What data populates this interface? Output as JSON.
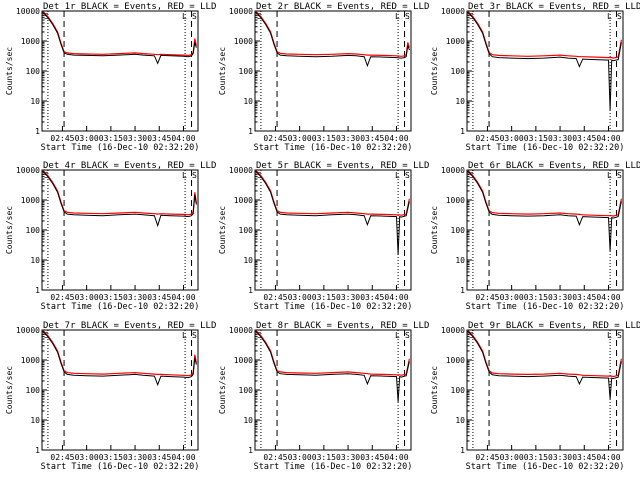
{
  "figure": {
    "ylabel": "Counts/sec",
    "xlabel": "Start Time (16-Dec-10 02:32:20)",
    "title_suffix": " BLACK = Events, RED = LLD",
    "corner_labels": {
      "left": "S",
      "right": "L",
      "far_right": "S"
    }
  },
  "chart_data": [
    {
      "type": "line",
      "title": "Det 1r BLACK = Events, RED = LLD",
      "xlabel": "Start Time (16-Dec-10 02:32:20)",
      "ylabel": "Counts/sec",
      "yscale": "log",
      "ylim": [
        1,
        10000
      ],
      "xlim": [
        "02:32:20",
        "04:09:00"
      ],
      "yticks": [
        1,
        10,
        100,
        1000,
        10000
      ],
      "ytick_labels": [
        "1",
        "10",
        "100",
        "1000",
        "10000"
      ],
      "xticks": [
        "02:45",
        "03:00",
        "03:15",
        "03:30",
        "03:45",
        "04:00"
      ],
      "x": [
        "02:33",
        "02:36",
        "02:39",
        "02:42",
        "02:44",
        "02:46",
        "02:48",
        "02:52",
        "03:00",
        "03:10",
        "03:20",
        "03:30",
        "03:35",
        "03:42",
        "03:44",
        "03:46",
        "03:52",
        "04:00",
        "04:03",
        "04:05",
        "04:06",
        "04:07",
        "04:08"
      ],
      "series": [
        {
          "name": "BLACK = Events",
          "color": "#000000",
          "values": [
            9000,
            6000,
            3500,
            1800,
            800,
            400,
            360,
            340,
            330,
            320,
            340,
            360,
            340,
            320,
            180,
            330,
            320,
            310,
            300,
            320,
            380,
            900,
            600
          ]
        },
        {
          "name": "RED = LLD",
          "color": "#ff0000",
          "values": [
            9500,
            6500,
            3800,
            2000,
            900,
            440,
            400,
            380,
            370,
            360,
            380,
            400,
            380,
            360,
            350,
            360,
            350,
            340,
            330,
            350,
            420,
            1200,
            700
          ]
        }
      ]
    },
    {
      "type": "line",
      "title": "Det 2r BLACK = Events, RED = LLD",
      "xlabel": "Start Time (16-Dec-10 02:32:20)",
      "ylabel": "Counts/sec",
      "yscale": "log",
      "ylim": [
        1,
        10000
      ],
      "xlim": [
        "02:32:20",
        "04:09:00"
      ],
      "yticks": [
        1,
        10,
        100,
        1000,
        10000
      ],
      "ytick_labels": [
        "1",
        "10",
        "100",
        "1000",
        "10000"
      ],
      "xticks": [
        "02:45",
        "03:00",
        "03:15",
        "03:30",
        "03:45",
        "04:00"
      ],
      "x": [
        "02:33",
        "02:36",
        "02:39",
        "02:42",
        "02:44",
        "02:46",
        "02:48",
        "02:52",
        "03:00",
        "03:10",
        "03:20",
        "03:30",
        "03:35",
        "03:40",
        "03:42",
        "03:44",
        "03:52",
        "04:00",
        "04:03",
        "04:05",
        "04:06",
        "04:07",
        "04:08"
      ],
      "series": [
        {
          "name": "BLACK = Events",
          "color": "#000000",
          "values": [
            9000,
            6000,
            3500,
            1800,
            800,
            400,
            340,
            320,
            310,
            300,
            310,
            330,
            320,
            300,
            150,
            300,
            290,
            280,
            270,
            280,
            300,
            700,
            500
          ]
        },
        {
          "name": "RED = LLD",
          "color": "#ff0000",
          "values": [
            9500,
            6500,
            3800,
            2000,
            900,
            440,
            390,
            370,
            360,
            350,
            360,
            380,
            370,
            350,
            340,
            340,
            330,
            320,
            310,
            320,
            350,
            900,
            600
          ]
        }
      ]
    },
    {
      "type": "line",
      "title": "Det 3r BLACK = Events, RED = LLD",
      "xlabel": "Start Time (16-Dec-10 02:32:20)",
      "ylabel": "Counts/sec",
      "yscale": "log",
      "ylim": [
        1,
        10000
      ],
      "xlim": [
        "02:32:20",
        "04:09:00"
      ],
      "yticks": [
        1,
        10,
        100,
        1000,
        10000
      ],
      "ytick_labels": [
        "1",
        "10",
        "100",
        "1000",
        "10000"
      ],
      "xticks": [
        "02:45",
        "03:00",
        "03:15",
        "03:30",
        "03:45",
        "04:00"
      ],
      "x": [
        "02:33",
        "02:36",
        "02:39",
        "02:42",
        "02:44",
        "02:46",
        "02:48",
        "02:52",
        "03:00",
        "03:10",
        "03:20",
        "03:30",
        "03:35",
        "03:40",
        "03:42",
        "03:44",
        "03:52",
        "04:00",
        "04:01",
        "04:02",
        "04:03",
        "04:06",
        "04:08"
      ],
      "series": [
        {
          "name": "BLACK = Events",
          "color": "#000000",
          "values": [
            9000,
            6000,
            3500,
            1800,
            800,
            380,
            300,
            280,
            270,
            260,
            270,
            290,
            270,
            260,
            140,
            250,
            240,
            230,
            5,
            230,
            220,
            240,
            900
          ]
        },
        {
          "name": "RED = LLD",
          "color": "#ff0000",
          "values": [
            9500,
            6500,
            3800,
            2000,
            900,
            420,
            350,
            330,
            320,
            310,
            320,
            340,
            320,
            310,
            300,
            300,
            290,
            280,
            280,
            280,
            270,
            290,
            1100
          ]
        }
      ]
    },
    {
      "type": "line",
      "title": "Det 4r BLACK = Events, RED = LLD",
      "xlabel": "Start Time (16-Dec-10 02:32:20)",
      "ylabel": "Counts/sec",
      "yscale": "log",
      "ylim": [
        1,
        10000
      ],
      "xlim": [
        "02:32:20",
        "04:09:00"
      ],
      "yticks": [
        1,
        10,
        100,
        1000,
        10000
      ],
      "ytick_labels": [
        "1",
        "10",
        "100",
        "1000",
        "10000"
      ],
      "xticks": [
        "02:45",
        "03:00",
        "03:15",
        "03:30",
        "03:45",
        "04:00"
      ],
      "x": [
        "02:33",
        "02:36",
        "02:39",
        "02:42",
        "02:44",
        "02:46",
        "02:48",
        "02:52",
        "03:00",
        "03:10",
        "03:20",
        "03:30",
        "03:35",
        "03:42",
        "03:44",
        "03:46",
        "03:52",
        "04:00",
        "04:03",
        "04:05",
        "04:06",
        "04:07",
        "04:08"
      ],
      "series": [
        {
          "name": "BLACK = Events",
          "color": "#000000",
          "values": [
            9000,
            6000,
            3500,
            1800,
            800,
            400,
            340,
            320,
            310,
            300,
            320,
            340,
            320,
            300,
            140,
            310,
            300,
            290,
            280,
            300,
            350,
            1500,
            700
          ]
        },
        {
          "name": "RED = LLD",
          "color": "#ff0000",
          "values": [
            9500,
            6500,
            3800,
            2000,
            900,
            440,
            390,
            370,
            360,
            350,
            370,
            390,
            370,
            350,
            340,
            350,
            340,
            330,
            320,
            340,
            400,
            1800,
            800
          ]
        }
      ]
    },
    {
      "type": "line",
      "title": "Det 5r BLACK = Events, RED = LLD",
      "xlabel": "Start Time (16-Dec-10 02:32:20)",
      "ylabel": "Counts/sec",
      "yscale": "log",
      "ylim": [
        1,
        10000
      ],
      "xlim": [
        "02:32:20",
        "04:09:00"
      ],
      "yticks": [
        1,
        10,
        100,
        1000,
        10000
      ],
      "ytick_labels": [
        "1",
        "10",
        "100",
        "1000",
        "10000"
      ],
      "xticks": [
        "02:45",
        "03:00",
        "03:15",
        "03:30",
        "03:45",
        "04:00"
      ],
      "x": [
        "02:33",
        "02:36",
        "02:39",
        "02:42",
        "02:44",
        "02:46",
        "02:48",
        "02:52",
        "03:00",
        "03:10",
        "03:20",
        "03:30",
        "03:35",
        "03:40",
        "03:42",
        "03:44",
        "03:52",
        "04:00",
        "04:01",
        "04:02",
        "04:03",
        "04:06",
        "04:08"
      ],
      "series": [
        {
          "name": "BLACK = Events",
          "color": "#000000",
          "values": [
            9000,
            6000,
            3500,
            1800,
            800,
            400,
            340,
            320,
            310,
            300,
            320,
            340,
            320,
            300,
            150,
            300,
            290,
            280,
            15,
            280,
            270,
            300,
            900
          ]
        },
        {
          "name": "RED = LLD",
          "color": "#ff0000",
          "values": [
            9500,
            6500,
            3800,
            2000,
            900,
            440,
            390,
            370,
            360,
            350,
            370,
            390,
            370,
            350,
            340,
            340,
            330,
            320,
            320,
            320,
            310,
            340,
            1100
          ]
        }
      ]
    },
    {
      "type": "line",
      "title": "Det 6r BLACK = Events, RED = LLD",
      "xlabel": "Start Time (16-Dec-10 02:32:20)",
      "ylabel": "Counts/sec",
      "yscale": "log",
      "ylim": [
        1,
        10000
      ],
      "xlim": [
        "02:32:20",
        "04:09:00"
      ],
      "yticks": [
        1,
        10,
        100,
        1000,
        10000
      ],
      "ytick_labels": [
        "1",
        "10",
        "100",
        "1000",
        "10000"
      ],
      "xticks": [
        "02:45",
        "03:00",
        "03:15",
        "03:30",
        "03:45",
        "04:00"
      ],
      "x": [
        "02:33",
        "02:36",
        "02:39",
        "02:42",
        "02:44",
        "02:46",
        "02:48",
        "02:52",
        "03:00",
        "03:10",
        "03:20",
        "03:30",
        "03:35",
        "03:40",
        "03:42",
        "03:44",
        "03:52",
        "04:00",
        "04:01",
        "04:02",
        "04:03",
        "04:06",
        "04:08"
      ],
      "series": [
        {
          "name": "BLACK = Events",
          "color": "#000000",
          "values": [
            9000,
            6000,
            3500,
            1800,
            800,
            400,
            330,
            310,
            300,
            290,
            300,
            320,
            300,
            290,
            150,
            280,
            270,
            260,
            20,
            260,
            250,
            280,
            900
          ]
        },
        {
          "name": "RED = LLD",
          "color": "#ff0000",
          "values": [
            9500,
            6500,
            3800,
            2000,
            900,
            440,
            380,
            360,
            350,
            340,
            350,
            370,
            350,
            340,
            330,
            320,
            310,
            300,
            300,
            300,
            290,
            320,
            1100
          ]
        }
      ]
    },
    {
      "type": "line",
      "title": "Det 7r BLACK = Events, RED = LLD",
      "xlabel": "Start Time (16-Dec-10 02:32:20)",
      "ylabel": "Counts/sec",
      "yscale": "log",
      "ylim": [
        1,
        10000
      ],
      "xlim": [
        "02:32:20",
        "04:09:00"
      ],
      "yticks": [
        1,
        10,
        100,
        1000,
        10000
      ],
      "ytick_labels": [
        "1",
        "10",
        "100",
        "1000",
        "10000"
      ],
      "xticks": [
        "02:45",
        "03:00",
        "03:15",
        "03:30",
        "03:45",
        "04:00"
      ],
      "x": [
        "02:33",
        "02:36",
        "02:39",
        "02:42",
        "02:44",
        "02:46",
        "02:48",
        "02:52",
        "03:00",
        "03:10",
        "03:20",
        "03:30",
        "03:35",
        "03:42",
        "03:44",
        "03:46",
        "03:52",
        "04:00",
        "04:03",
        "04:05",
        "04:06",
        "04:07",
        "04:08"
      ],
      "series": [
        {
          "name": "BLACK = Events",
          "color": "#000000",
          "values": [
            9000,
            6000,
            3500,
            1800,
            800,
            400,
            330,
            310,
            300,
            290,
            310,
            330,
            310,
            290,
            150,
            290,
            280,
            270,
            260,
            280,
            330,
            1200,
            700
          ]
        },
        {
          "name": "RED = LLD",
          "color": "#ff0000",
          "values": [
            9500,
            6500,
            3800,
            2000,
            900,
            440,
            380,
            360,
            350,
            340,
            360,
            380,
            360,
            340,
            330,
            330,
            320,
            310,
            300,
            320,
            380,
            1500,
            800
          ]
        }
      ]
    },
    {
      "type": "line",
      "title": "Det 8r BLACK = Events, RED = LLD",
      "xlabel": "Start Time (16-Dec-10 02:32:20)",
      "ylabel": "Counts/sec",
      "yscale": "log",
      "ylim": [
        1,
        10000
      ],
      "xlim": [
        "02:32:20",
        "04:09:00"
      ],
      "yticks": [
        1,
        10,
        100,
        1000,
        10000
      ],
      "ytick_labels": [
        "1",
        "10",
        "100",
        "1000",
        "10000"
      ],
      "xticks": [
        "02:45",
        "03:00",
        "03:15",
        "03:30",
        "03:45",
        "04:00"
      ],
      "x": [
        "02:33",
        "02:36",
        "02:39",
        "02:42",
        "02:44",
        "02:46",
        "02:48",
        "02:52",
        "03:00",
        "03:10",
        "03:20",
        "03:30",
        "03:35",
        "03:40",
        "03:42",
        "03:44",
        "03:52",
        "04:00",
        "04:01",
        "04:02",
        "04:03",
        "04:06",
        "04:08"
      ],
      "series": [
        {
          "name": "BLACK = Events",
          "color": "#000000",
          "values": [
            9000,
            6000,
            3500,
            1800,
            800,
            400,
            350,
            330,
            320,
            310,
            330,
            350,
            330,
            310,
            160,
            300,
            290,
            280,
            40,
            280,
            270,
            300,
            900
          ]
        },
        {
          "name": "RED = LLD",
          "color": "#ff0000",
          "values": [
            9500,
            6500,
            3800,
            2000,
            900,
            440,
            400,
            380,
            370,
            360,
            380,
            400,
            380,
            360,
            350,
            340,
            330,
            320,
            320,
            320,
            310,
            340,
            1100
          ]
        }
      ]
    },
    {
      "type": "line",
      "title": "Det 9r BLACK = Events, RED = LLD",
      "xlabel": "Start Time (16-Dec-10 02:32:20)",
      "ylabel": "Counts/sec",
      "yscale": "log",
      "ylim": [
        1,
        10000
      ],
      "xlim": [
        "02:32:20",
        "04:09:00"
      ],
      "yticks": [
        1,
        10,
        100,
        1000,
        10000
      ],
      "ytick_labels": [
        "1",
        "10",
        "100",
        "1000",
        "10000"
      ],
      "xticks": [
        "02:45",
        "03:00",
        "03:15",
        "03:30",
        "03:45",
        "04:00"
      ],
      "x": [
        "02:33",
        "02:36",
        "02:39",
        "02:42",
        "02:44",
        "02:46",
        "02:48",
        "02:52",
        "03:00",
        "03:10",
        "03:20",
        "03:30",
        "03:35",
        "03:40",
        "03:42",
        "03:44",
        "03:52",
        "04:00",
        "04:01",
        "04:02",
        "04:03",
        "04:06",
        "04:08"
      ],
      "series": [
        {
          "name": "BLACK = Events",
          "color": "#000000",
          "values": [
            9000,
            6000,
            3500,
            1800,
            800,
            400,
            320,
            300,
            290,
            280,
            290,
            310,
            290,
            280,
            160,
            270,
            260,
            250,
            50,
            250,
            240,
            270,
            900
          ]
        },
        {
          "name": "RED = LLD",
          "color": "#ff0000",
          "values": [
            9500,
            6500,
            3800,
            2000,
            900,
            440,
            370,
            350,
            340,
            330,
            340,
            360,
            340,
            330,
            320,
            310,
            300,
            290,
            290,
            290,
            280,
            310,
            1100
          ]
        }
      ]
    }
  ]
}
